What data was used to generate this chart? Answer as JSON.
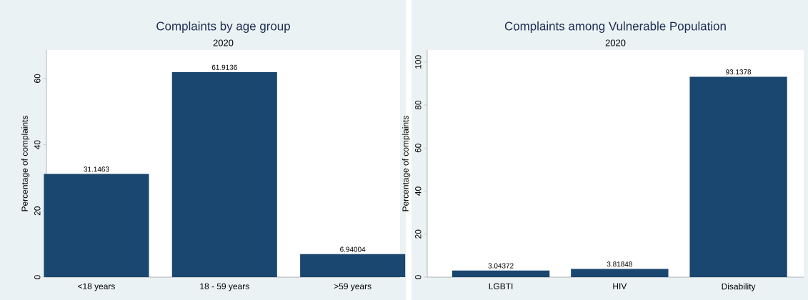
{
  "chart_data": [
    {
      "type": "bar",
      "title": "Complaints by age group",
      "subtitle": "2020",
      "ylabel": "Percentage of complaints",
      "categories": [
        "<18 years",
        "18 - 59 years",
        ">59 years"
      ],
      "values": [
        31.1463,
        61.9136,
        6.94004
      ],
      "value_labels": [
        "31.1463",
        "61.9136",
        "6.94004"
      ],
      "color": "#1a476f",
      "ylim": [
        0,
        68.6
      ],
      "yticks": [
        0,
        20,
        40,
        60
      ]
    },
    {
      "type": "bar",
      "title": "Complaints among Vulnerable Population",
      "subtitle": "2020",
      "ylabel": "Percentage of complaints",
      "categories": [
        "LGBTI",
        "HIV",
        "Disability"
      ],
      "values": [
        3.04372,
        3.81848,
        93.1378
      ],
      "value_labels": [
        "3.04372",
        "3.81848",
        "93.1378"
      ],
      "color": "#1a476f",
      "ylim": [
        0,
        105.6
      ],
      "yticks": [
        0,
        20,
        40,
        60,
        80,
        100
      ]
    }
  ]
}
